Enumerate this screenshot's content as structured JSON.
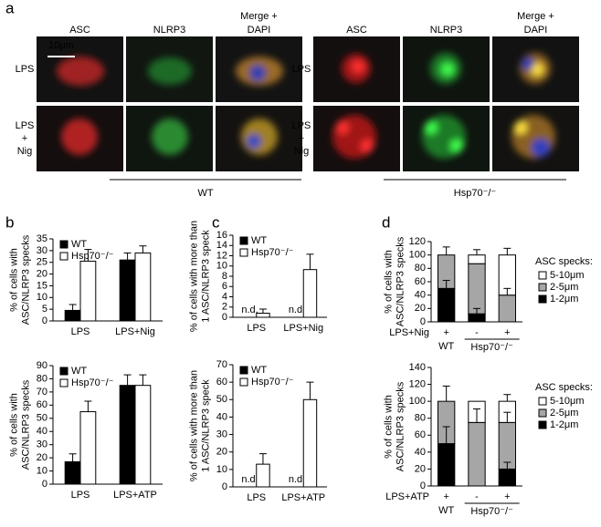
{
  "panel_labels": [
    "a",
    "b",
    "c",
    "d"
  ],
  "panel_a": {
    "columns": [
      {
        "text": "ASC",
        "color": "#e8262a"
      },
      {
        "text": "NLRP3",
        "color": "#2aa84a"
      },
      {
        "text": "Merge +",
        "color": "#000000",
        "text2": "DAPI",
        "color2": "#2a5cc8"
      }
    ],
    "rows": [
      [
        "LPS"
      ],
      [
        "LPS",
        "+",
        "Nig"
      ]
    ],
    "scale_bar": "10μm",
    "groups": [
      "WT",
      "Hsp70⁻/⁻"
    ]
  },
  "chart_data": [
    {
      "type": "bar",
      "categories": [
        "LPS",
        "LPS+Nig"
      ],
      "ylabel": [
        "% of cells with",
        "ASC/NLRP3 specks"
      ],
      "ylim": [
        0,
        35
      ],
      "yticks": [
        0,
        5,
        10,
        15,
        20,
        25,
        30,
        35
      ],
      "legend": "upper left",
      "series": [
        {
          "name": "WT",
          "color": "#000000",
          "values": [
            4.5,
            26
          ],
          "errors": [
            2.5,
            3
          ]
        },
        {
          "name": "Hsp70⁻/⁻",
          "color": "#ffffff",
          "values": [
            25.5,
            29
          ],
          "errors": [
            5,
            3
          ]
        }
      ]
    },
    {
      "type": "bar",
      "categories": [
        "LPS",
        "LPS+ATP"
      ],
      "ylabel": [
        "% of cells with",
        "ASC/NLRP3 specks"
      ],
      "ylim": [
        0,
        90
      ],
      "yticks": [
        0,
        10,
        20,
        30,
        40,
        50,
        60,
        70,
        80,
        90
      ],
      "legend": "upper left",
      "series": [
        {
          "name": "WT",
          "color": "#000000",
          "values": [
            17,
            75
          ],
          "errors": [
            6,
            8
          ]
        },
        {
          "name": "Hsp70⁻/⁻",
          "color": "#ffffff",
          "values": [
            55,
            75
          ],
          "errors": [
            8,
            8
          ]
        }
      ]
    },
    {
      "type": "bar",
      "categories": [
        "LPS",
        "LPS+Nig"
      ],
      "ylabel": [
        "% of cells with more than",
        "1 ASC/NLRP3 speck"
      ],
      "ylim": [
        0,
        16
      ],
      "yticks": [
        0,
        2,
        4,
        6,
        8,
        10,
        12,
        14,
        16
      ],
      "legend": "upper left",
      "series": [
        {
          "name": "WT",
          "color": "#000000",
          "values": [
            null,
            null
          ],
          "value_labels": [
            "n.d.",
            "n.d."
          ]
        },
        {
          "name": "Hsp70⁻/⁻",
          "color": "#ffffff",
          "values": [
            0.8,
            9.3
          ],
          "errors": [
            0.8,
            3
          ]
        }
      ]
    },
    {
      "type": "bar",
      "categories": [
        "LPS",
        "LPS+ATP"
      ],
      "ylabel": [
        "% of cells with more than",
        "1 ASC/NLRP3 speck"
      ],
      "ylim": [
        0,
        70
      ],
      "yticks": [
        0,
        10,
        20,
        30,
        40,
        50,
        60,
        70
      ],
      "legend": "upper left",
      "series": [
        {
          "name": "WT",
          "color": "#000000",
          "values": [
            null,
            null
          ],
          "value_labels": [
            "n.d.",
            "n.d."
          ]
        },
        {
          "name": "Hsp70⁻/⁻",
          "color": "#ffffff",
          "values": [
            13,
            50
          ],
          "errors": [
            6,
            10
          ]
        }
      ]
    },
    {
      "type": "stacked_bar",
      "categories": [
        "+",
        "-",
        "+"
      ],
      "row_label": "LPS+Nig",
      "groups": [
        "WT",
        "Hsp70⁻/⁻"
      ],
      "ylabel": [
        "% of cells with",
        "ASC/NLRP3 specks"
      ],
      "ylim": [
        0,
        120
      ],
      "yticks": [
        0,
        20,
        40,
        60,
        80,
        100,
        120
      ],
      "legend_title": "ASC specks:",
      "legend": "right",
      "series": [
        {
          "name": "1-2μm",
          "color": "#000000",
          "values": [
            50,
            12,
            0
          ],
          "errors": [
            12,
            8,
            null
          ]
        },
        {
          "name": "2-5μm",
          "color": "#a6a6a6",
          "values": [
            50,
            75,
            40
          ],
          "errors": [
            12,
            null,
            10
          ]
        },
        {
          "name": "5-10μm",
          "color": "#ffffff",
          "values": [
            0,
            13,
            60
          ],
          "errors": [
            null,
            8,
            10
          ]
        }
      ]
    },
    {
      "type": "stacked_bar",
      "categories": [
        "+",
        "-",
        "+"
      ],
      "row_label": "LPS+ATP",
      "groups": [
        "WT",
        "Hsp70⁻/⁻"
      ],
      "ylabel": [
        "% of cells with",
        "ASC/NLRP3 specks"
      ],
      "ylim": [
        0,
        140
      ],
      "yticks": [
        0,
        20,
        40,
        60,
        80,
        100,
        120,
        140
      ],
      "legend_title": "ASC specks:",
      "legend": "right",
      "series": [
        {
          "name": "1-2μm",
          "color": "#000000",
          "values": [
            50,
            0,
            20
          ],
          "errors": [
            20,
            null,
            8
          ]
        },
        {
          "name": "2-5μm",
          "color": "#a6a6a6",
          "values": [
            50,
            75,
            55
          ],
          "errors": [
            18,
            16,
            12
          ]
        },
        {
          "name": "5-10μm",
          "color": "#ffffff",
          "values": [
            0,
            25,
            25
          ],
          "errors": [
            null,
            null,
            8
          ]
        }
      ]
    }
  ]
}
